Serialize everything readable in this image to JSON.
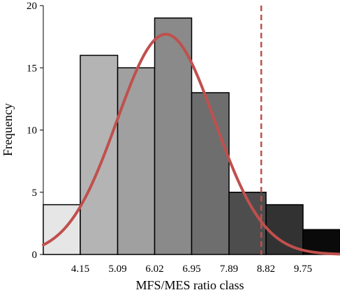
{
  "chart_data": {
    "type": "bar",
    "subtype": "histogram",
    "title": "",
    "xlabel": "MFS/MES ratio class",
    "ylabel": "Frequency",
    "ylim": [
      0,
      20
    ],
    "yticks": [
      0,
      5,
      10,
      15,
      20
    ],
    "x_tick_labels": [
      "4.15",
      "5.09",
      "6.02",
      "6.95",
      "7.89",
      "8.82",
      "9.75"
    ],
    "bins": [
      {
        "from": 3.22,
        "to": 4.15,
        "value": 4,
        "color": "#e6e6e6"
      },
      {
        "from": 4.15,
        "to": 5.09,
        "value": 16,
        "color": "#b4b4b4"
      },
      {
        "from": 5.09,
        "to": 6.02,
        "value": 15,
        "color": "#a0a0a0"
      },
      {
        "from": 6.02,
        "to": 6.95,
        "value": 19,
        "color": "#8a8a8a"
      },
      {
        "from": 6.95,
        "to": 7.89,
        "value": 13,
        "color": "#6e6e6e"
      },
      {
        "from": 7.89,
        "to": 8.82,
        "value": 5,
        "color": "#4d4d4d"
      },
      {
        "from": 8.82,
        "to": 9.75,
        "value": 4,
        "color": "#323232"
      },
      {
        "from": 9.75,
        "to": 10.68,
        "value": 2,
        "color": "#0a0a0a"
      }
    ],
    "normal_curve": {
      "mean": 6.3,
      "sd": 1.23,
      "peak": 17.7,
      "color": "#c0504d"
    },
    "threshold_line": {
      "x": 8.7,
      "style": "dashed",
      "color": "#c0504d"
    },
    "grid": false,
    "legend": "none"
  }
}
